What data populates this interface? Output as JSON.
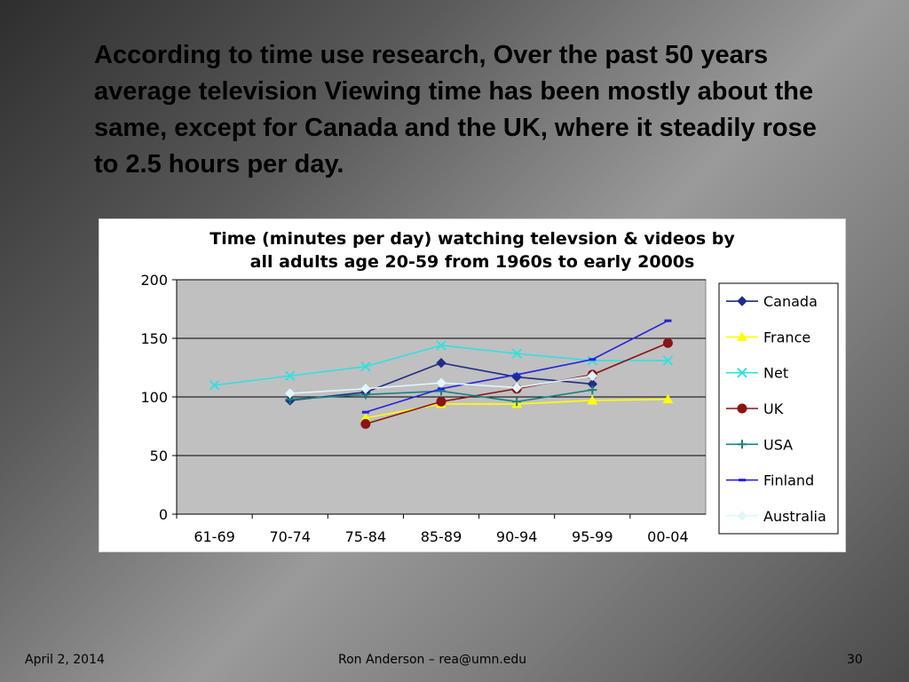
{
  "slide": {
    "heading": "According to time use research, Over the past 50 years average television Viewing time has been mostly about the same, except for Canada and the UK, where it steadily rose to 2.5 hours per day."
  },
  "footer": {
    "date": "April 2, 2014",
    "author": "Ron Anderson – rea@umn.edu",
    "page": "30"
  },
  "chart_data": {
    "type": "line",
    "title": "Time (minutes per day) watching televsion & videos by all adults age 20-59 from 1960s to early 2000s",
    "title_lines": [
      "Time (minutes per day) watching televsion & videos by",
      "all adults age 20-59 from 1960s to early 2000s"
    ],
    "categories": [
      "61-69",
      "70-74",
      "75-84",
      "85-89",
      "90-94",
      "95-99",
      "00-04"
    ],
    "ylim": [
      0,
      200
    ],
    "yticks": [
      0,
      50,
      100,
      150,
      200
    ],
    "grid": "horizontal",
    "plot_background": "#c0c0c0",
    "legend_position": "right",
    "series": [
      {
        "name": "Canada",
        "color": "#1f2d86",
        "marker": "diamond",
        "values": [
          null,
          97,
          104,
          129,
          117,
          111,
          null
        ]
      },
      {
        "name": "France",
        "color": "#ffff00",
        "marker": "triangle",
        "values": [
          null,
          null,
          82,
          94,
          94,
          97,
          98
        ]
      },
      {
        "name": "Net",
        "color": "#33e0e0",
        "marker": "x",
        "values": [
          110,
          118,
          126,
          144,
          137,
          131,
          131
        ]
      },
      {
        "name": "UK",
        "color": "#8b1414",
        "marker": "circle",
        "values": [
          null,
          null,
          77,
          96,
          107,
          119,
          146
        ]
      },
      {
        "name": "USA",
        "color": "#1a8080",
        "marker": "plus",
        "values": [
          null,
          98,
          102,
          105,
          96,
          106,
          null
        ]
      },
      {
        "name": "Finland",
        "color": "#2222dd",
        "marker": "dash",
        "values": [
          null,
          null,
          87,
          107,
          119,
          132,
          165
        ]
      },
      {
        "name": "Australia",
        "color": "#e0f6ff",
        "marker": "diamond",
        "values": [
          null,
          103,
          107,
          112,
          108,
          118,
          null
        ]
      }
    ]
  }
}
